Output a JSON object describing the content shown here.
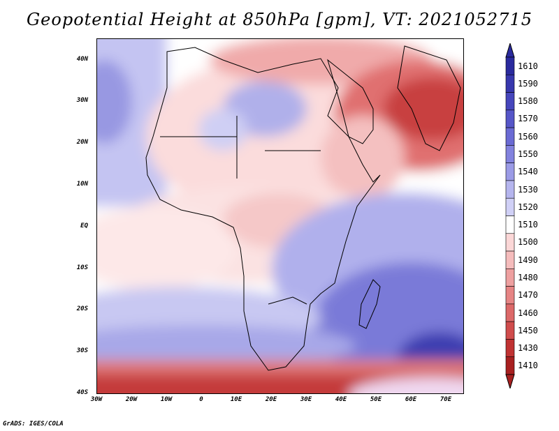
{
  "title": "Geopotential Height at 850hPa [gpm], VT: 2021052715",
  "credit": "GrADS: IGES/COLA",
  "axes": {
    "lat_labels": [
      "40N",
      "30N",
      "20N",
      "10N",
      "EQ",
      "10S",
      "20S",
      "30S",
      "40S"
    ],
    "lon_labels": [
      "30W",
      "20W",
      "10W",
      "0",
      "10E",
      "20E",
      "30E",
      "40E",
      "50E",
      "60E",
      "70E"
    ]
  },
  "colorbar": {
    "labels": [
      "1610",
      "1590",
      "1580",
      "1570",
      "1560",
      "1550",
      "1540",
      "1530",
      "1520",
      "1510",
      "1500",
      "1490",
      "1480",
      "1470",
      "1460",
      "1450",
      "1430",
      "1410"
    ],
    "colors": [
      "#2a2a9e",
      "#3737ad",
      "#4646bc",
      "#5656c8",
      "#6a6ad4",
      "#8282de",
      "#9b9be6",
      "#b5b5ee",
      "#d0d0f6",
      "#ffffff",
      "#fbd7d7",
      "#f5bcbc",
      "#eea0a0",
      "#e68484",
      "#dc6868",
      "#d04c4c",
      "#c03232",
      "#a82020"
    ]
  },
  "colors": {
    "land_border": "#000000",
    "background": "#ffffff"
  }
}
